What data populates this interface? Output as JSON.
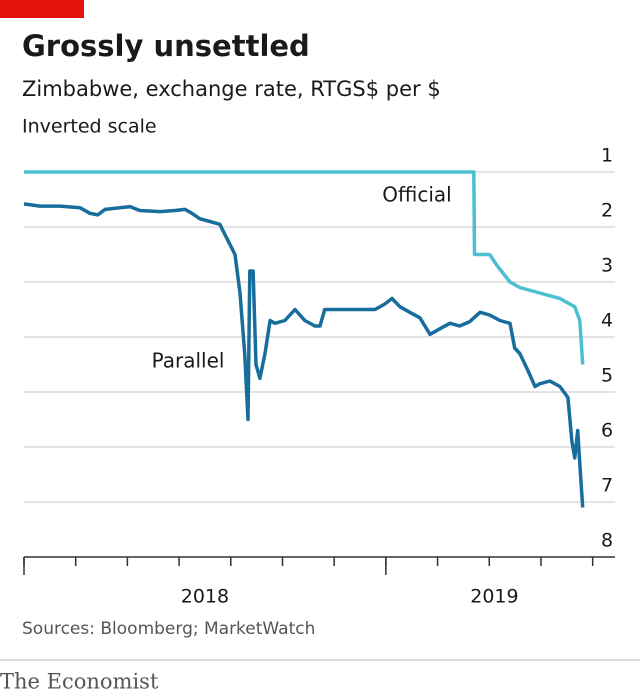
{
  "chart_data": {
    "type": "line",
    "title": "Grossly unsettled",
    "subtitle": "Zimbabwe, exchange rate, RTGS$ per $",
    "note": "Inverted scale",
    "source": "Sources: Bloomberg; MarketWatch",
    "publisher": "The Economist",
    "series": [
      {
        "name": "Official",
        "color": "#4cc0d2",
        "x": [
          2018.0,
          2019.243,
          2019.245,
          2019.287,
          2019.307,
          2019.343,
          2019.37,
          2019.425,
          2019.481,
          2019.522,
          2019.536,
          2019.544
        ],
        "values": [
          1,
          1,
          2.5,
          2.5,
          2.7,
          3.0,
          3.1,
          3.2,
          3.3,
          3.45,
          3.7,
          4.5
        ]
      },
      {
        "name": "Parallel",
        "color": "#176e9c",
        "x": [
          2018.0,
          2018.044,
          2018.099,
          2018.155,
          2018.182,
          2018.204,
          2018.224,
          2018.265,
          2018.293,
          2018.32,
          2018.376,
          2018.417,
          2018.445,
          2018.464,
          2018.486,
          2018.514,
          2018.541,
          2018.564,
          2018.583,
          2018.597,
          2018.61,
          2018.619,
          2018.624,
          2018.633,
          2018.641,
          2018.652,
          2018.666,
          2018.68,
          2018.693,
          2018.721,
          2018.749,
          2018.776,
          2018.804,
          2018.818,
          2018.831,
          2018.901,
          2018.97,
          2018.997,
          2019.017,
          2019.039,
          2019.066,
          2019.094,
          2019.122,
          2019.149,
          2019.177,
          2019.204,
          2019.232,
          2019.26,
          2019.287,
          2019.315,
          2019.343,
          2019.356,
          2019.37,
          2019.392,
          2019.412,
          2019.425,
          2019.453,
          2019.481,
          2019.503,
          2019.514,
          2019.522,
          2019.53,
          2019.536,
          2019.544
        ],
        "values": [
          1.58,
          1.62,
          1.62,
          1.65,
          1.75,
          1.78,
          1.68,
          1.65,
          1.63,
          1.7,
          1.72,
          1.7,
          1.68,
          1.75,
          1.85,
          1.9,
          1.95,
          2.25,
          2.5,
          3.2,
          4.3,
          5.5,
          2.8,
          2.8,
          4.5,
          4.75,
          4.3,
          3.7,
          3.75,
          3.7,
          3.5,
          3.7,
          3.8,
          3.8,
          3.5,
          3.5,
          3.5,
          3.4,
          3.3,
          3.45,
          3.55,
          3.65,
          3.95,
          3.85,
          3.75,
          3.8,
          3.72,
          3.55,
          3.6,
          3.7,
          3.75,
          4.2,
          4.3,
          4.6,
          4.9,
          4.85,
          4.8,
          4.9,
          5.1,
          5.9,
          6.2,
          5.7,
          6.3,
          7.1
        ]
      }
    ],
    "xlim": [
      2018,
      2019.6
    ],
    "xticks": [
      2018,
      2019
    ],
    "ylim": [
      1,
      8
    ],
    "yticks": [
      1,
      2,
      3,
      4,
      5,
      6,
      7,
      8
    ],
    "y_inverted": true,
    "grid": true
  }
}
